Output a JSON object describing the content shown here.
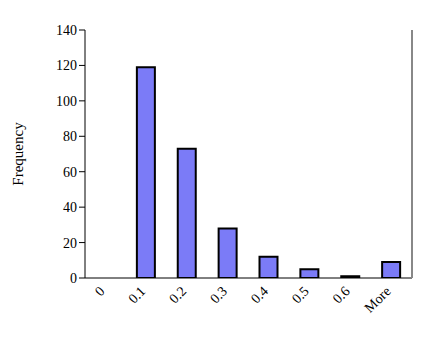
{
  "chart_data": {
    "type": "bar",
    "categories": [
      "0",
      "0.1",
      "0.2",
      "0.3",
      "0.4",
      "0.5",
      "0.6",
      "More"
    ],
    "values": [
      0,
      119,
      73,
      28,
      12,
      5,
      1,
      9
    ],
    "color": "#7b7bf7",
    "y_label": "Frequency",
    "ylim": [
      0,
      140
    ],
    "yticks": [
      0,
      20,
      40,
      60,
      80,
      100,
      120,
      140
    ],
    "grid": false
  }
}
